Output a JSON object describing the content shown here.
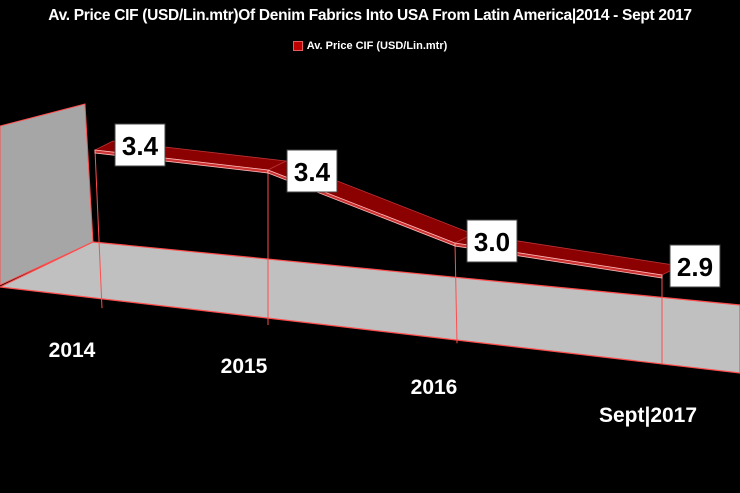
{
  "chart_data": {
    "type": "line",
    "subtype": "3d-ribbon",
    "title": "Av. Price CIF (USD/Lin.mtr)Of Denim Fabrics Into USA From Latin America|2014 - Sept 2017",
    "categories": [
      "2014",
      "2015",
      "2016",
      "Sept|2017"
    ],
    "series": [
      {
        "name": "Av. Price CIF (USD/Lin.mtr)",
        "values": [
          3.4,
          3.4,
          3.0,
          2.9
        ],
        "labels": [
          "3.4",
          "3.4",
          "3.0",
          "2.9"
        ],
        "color": "#8b0000"
      }
    ],
    "xlabel": "",
    "ylabel": "",
    "legend_position": "top",
    "grid": false,
    "colors": {
      "background": "#000000",
      "wall": "#a6a6a6",
      "floor": "#c0c0c0",
      "edge": "#ff4d4d",
      "ribbon": "#8b0000"
    }
  }
}
